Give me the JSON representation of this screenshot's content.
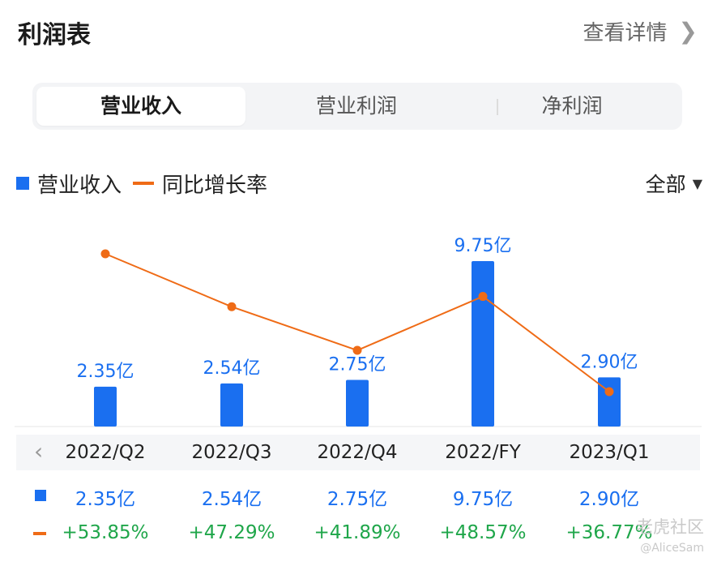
{
  "header": {
    "title": "利润表",
    "detail_label": "查看详情"
  },
  "tabs": [
    {
      "label": "营业收入",
      "active": true
    },
    {
      "label": "营业利润",
      "active": false
    },
    {
      "label": "净利润",
      "active": false
    }
  ],
  "filter": {
    "label": "全部"
  },
  "colors": {
    "bar": "#1a6ff0",
    "line": "#ef6b16",
    "positive": "#1fa64a"
  },
  "chart_data": {
    "type": "bar",
    "categories": [
      "2022/Q2",
      "2022/Q3",
      "2022/Q4",
      "2022/FY",
      "2023/Q1"
    ],
    "series": [
      {
        "name": "营业收入",
        "type": "bar",
        "values": [
          2.35,
          2.54,
          2.75,
          9.75,
          2.9
        ],
        "unit": "亿",
        "labels": [
          "2.35亿",
          "2.54亿",
          "2.75亿",
          "9.75亿",
          "2.90亿"
        ]
      },
      {
        "name": "同比增长率",
        "type": "line",
        "values": [
          53.85,
          47.29,
          41.89,
          48.57,
          36.77
        ],
        "unit": "%",
        "labels": [
          "+53.85%",
          "+47.29%",
          "+41.89%",
          "+48.57%",
          "+36.77%"
        ]
      }
    ],
    "legend_position": "top-left",
    "grid": false
  },
  "table": {
    "columns": [
      "2022/Q2",
      "2022/Q3",
      "2022/Q4",
      "2022/FY",
      "2023/Q1"
    ],
    "revenue": [
      "2.35亿",
      "2.54亿",
      "2.75亿",
      "9.75亿",
      "2.90亿"
    ],
    "yoy": [
      "+53.85%",
      "+47.29%",
      "+41.89%",
      "+48.57%",
      "+36.77%"
    ]
  },
  "watermark": {
    "text": "老虎社区",
    "user": "@AliceSam"
  }
}
